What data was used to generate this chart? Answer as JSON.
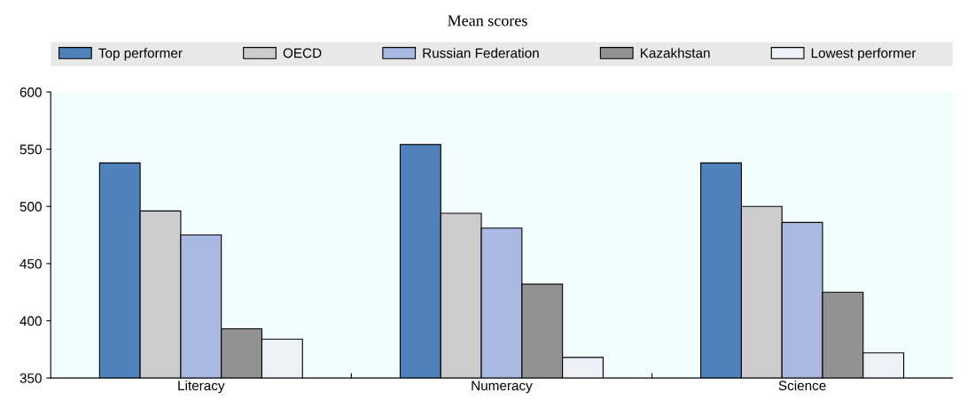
{
  "chart_data": {
    "type": "bar",
    "title": "Mean scores",
    "categories": [
      "Literacy",
      "Numeracy",
      "Science"
    ],
    "series": [
      {
        "name": "Top performer",
        "color": "#4f81bd",
        "values": [
          538,
          554,
          538
        ]
      },
      {
        "name": "OECD",
        "color": "#cccccc",
        "values": [
          496,
          494,
          500
        ]
      },
      {
        "name": "Russian Federation",
        "color": "#a9b9e2",
        "values": [
          475,
          481,
          486
        ]
      },
      {
        "name": "Kazakhstan",
        "color": "#929292",
        "values": [
          393,
          432,
          425
        ]
      },
      {
        "name": "Lowest performer",
        "color": "#eef0f8",
        "values": [
          384,
          368,
          372
        ]
      }
    ],
    "ylim": [
      350,
      600
    ],
    "yticks": [
      350,
      400,
      450,
      500,
      550,
      600
    ],
    "grid": false,
    "legend": "top"
  }
}
